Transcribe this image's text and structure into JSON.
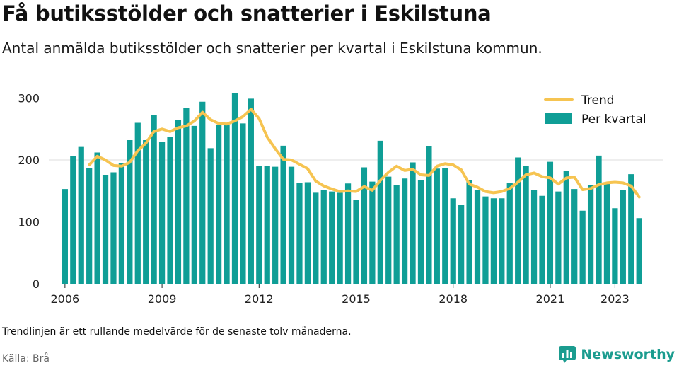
{
  "title": "Få butiksstölder och snatterier i Eskilstuna",
  "subtitle": "Antal anmälda butiksstölder och snatterier per kvartal i Eskilstuna kommun.",
  "note": "Trendlinjen är ett rullande medelvärde för de senaste tolv månaderna.",
  "source": "Källa: Brå",
  "brand": "Newsworthy",
  "colors": {
    "bar": "#0f9e96",
    "trend": "#f6c451",
    "grid": "#dddddd",
    "axis": "#222222",
    "brand": "#1b9c8f"
  },
  "chart_data": {
    "type": "bar",
    "xlim": [
      2005.5,
      2024.5
    ],
    "ylim": [
      0,
      320
    ],
    "yticks": [
      0,
      100,
      200,
      300
    ],
    "xticks": [
      2006,
      2009,
      2012,
      2015,
      2018,
      2021,
      2023
    ],
    "grid": true,
    "legend_position": "top-right",
    "series": [
      {
        "name": "Per kvartal",
        "kind": "bar",
        "x": [
          "2006 Q1",
          "2006 Q2",
          "2006 Q3",
          "2006 Q4",
          "2007 Q1",
          "2007 Q2",
          "2007 Q3",
          "2007 Q4",
          "2008 Q1",
          "2008 Q2",
          "2008 Q3",
          "2008 Q4",
          "2009 Q1",
          "2009 Q2",
          "2009 Q3",
          "2009 Q4",
          "2010 Q1",
          "2010 Q2",
          "2010 Q3",
          "2010 Q4",
          "2011 Q1",
          "2011 Q2",
          "2011 Q3",
          "2011 Q4",
          "2012 Q1",
          "2012 Q2",
          "2012 Q3",
          "2012 Q4",
          "2013 Q1",
          "2013 Q2",
          "2013 Q3",
          "2013 Q4",
          "2014 Q1",
          "2014 Q2",
          "2014 Q3",
          "2014 Q4",
          "2015 Q1",
          "2015 Q2",
          "2015 Q3",
          "2015 Q4",
          "2016 Q1",
          "2016 Q2",
          "2016 Q3",
          "2016 Q4",
          "2017 Q1",
          "2017 Q2",
          "2017 Q3",
          "2017 Q4",
          "2018 Q1",
          "2018 Q2",
          "2018 Q3",
          "2018 Q4",
          "2019 Q1",
          "2019 Q2",
          "2019 Q3",
          "2019 Q4",
          "2020 Q1",
          "2020 Q2",
          "2020 Q3",
          "2020 Q4",
          "2021 Q1",
          "2021 Q2",
          "2021 Q3",
          "2021 Q4",
          "2022 Q1",
          "2022 Q2",
          "2022 Q3",
          "2022 Q4",
          "2023 Q1",
          "2023 Q2",
          "2023 Q3",
          "2023 Q4"
        ],
        "values": [
          153,
          206,
          221,
          187,
          212,
          176,
          180,
          195,
          232,
          260,
          232,
          273,
          229,
          237,
          264,
          284,
          255,
          294,
          219,
          256,
          256,
          308,
          259,
          299,
          190,
          190,
          189,
          223,
          189,
          163,
          164,
          147,
          152,
          149,
          147,
          162,
          136,
          188,
          165,
          231,
          173,
          160,
          170,
          196,
          168,
          222,
          186,
          187,
          138,
          127,
          167,
          152,
          141,
          138,
          138,
          163,
          204,
          190,
          151,
          142,
          197,
          149,
          182,
          153,
          118,
          159,
          207,
          163,
          122,
          152,
          177,
          106
        ]
      },
      {
        "name": "Trend",
        "kind": "line",
        "x_quarter_index": [
          3,
          4,
          5,
          6,
          7,
          8,
          9,
          10,
          11,
          12,
          13,
          14,
          15,
          16,
          17,
          18,
          19,
          20,
          21,
          22,
          23,
          24,
          25,
          26,
          27,
          28,
          29,
          30,
          31,
          32,
          33,
          34,
          35,
          36,
          37,
          38,
          39,
          40,
          41,
          42,
          43,
          44,
          45,
          46,
          47,
          48,
          49,
          50,
          51,
          52,
          53,
          54,
          55,
          56,
          57,
          58,
          59,
          60,
          61,
          62,
          63,
          64,
          65,
          66,
          67,
          68,
          69,
          70,
          71
        ],
        "values": [
          192,
          206,
          200,
          191,
          190,
          196,
          215,
          227,
          246,
          250,
          246,
          252,
          255,
          263,
          277,
          265,
          259,
          258,
          263,
          270,
          282,
          267,
          237,
          218,
          201,
          200,
          193,
          186,
          166,
          158,
          153,
          149,
          150,
          149,
          157,
          151,
          167,
          180,
          190,
          183,
          185,
          176,
          175,
          190,
          194,
          192,
          184,
          161,
          156,
          149,
          147,
          149,
          154,
          164,
          176,
          179,
          173,
          171,
          161,
          171,
          172,
          152,
          154,
          160,
          163,
          164,
          163,
          158,
          140
        ]
      }
    ]
  }
}
